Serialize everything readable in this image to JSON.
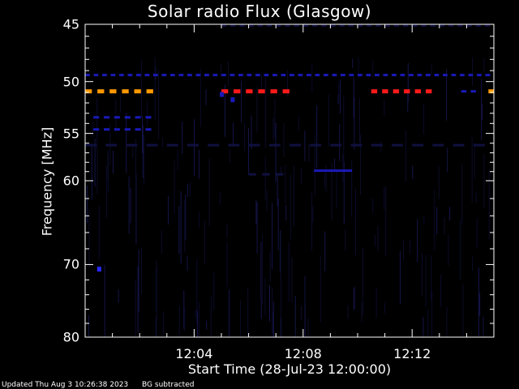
{
  "chart_data": {
    "type": "heatmap",
    "title": "Solar radio Flux (Glasgow)",
    "xlabel": "Start Time (28-Jul-23 12:00:00)",
    "ylabel": "Frequency [MHz]",
    "x_range_minutes": [
      0,
      15
    ],
    "y_range_mhz": [
      45,
      80
    ],
    "x_ticks": [
      {
        "value": 4,
        "label": "12:04"
      },
      {
        "value": 8,
        "label": "12:08"
      },
      {
        "value": 12,
        "label": "12:12"
      }
    ],
    "y_ticks": [
      {
        "value": 45,
        "label": "45"
      },
      {
        "value": 50,
        "label": "50"
      },
      {
        "value": 55,
        "label": "55"
      },
      {
        "value": 60,
        "label": "60"
      },
      {
        "value": 70,
        "label": "70"
      },
      {
        "value": 80,
        "label": "80"
      }
    ],
    "background_color": "#000000",
    "colors": {
      "dim": "#101040",
      "blue": "#1a1ab8",
      "bright_blue": "#2a2aff",
      "orange": "#ff9900",
      "red": "#ff1a1a"
    },
    "bands": [
      {
        "freq": 50.9,
        "x_start": 0.0,
        "x_end": 2.7,
        "color": "orange",
        "dashes": 6
      },
      {
        "freq": 50.9,
        "x_start": 5.0,
        "x_end": 7.7,
        "color": "red",
        "dashes": 6
      },
      {
        "freq": 50.9,
        "x_start": 10.5,
        "x_end": 12.9,
        "color": "red",
        "dashes": 6
      },
      {
        "freq": 50.9,
        "x_start": 13.8,
        "x_end": 14.5,
        "color": "blue",
        "dashes": 2
      },
      {
        "freq": 50.9,
        "x_start": 14.8,
        "x_end": 15.0,
        "color": "orange",
        "dashes": 1
      },
      {
        "freq": 49.4,
        "x_start": 0.0,
        "x_end": 15.0,
        "color": "blue",
        "dashes": 48
      },
      {
        "freq": 45.1,
        "x_start": 5.0,
        "x_end": 15.0,
        "color": "dim",
        "dashes": 30
      },
      {
        "freq": 53.4,
        "x_start": 0.3,
        "x_end": 2.6,
        "color": "blue",
        "dashes": 6
      },
      {
        "freq": 54.6,
        "x_start": 0.3,
        "x_end": 2.6,
        "color": "blue",
        "dashes": 6
      },
      {
        "freq": 58.9,
        "x_start": 8.4,
        "x_end": 9.8,
        "color": "blue",
        "dashes": 1
      },
      {
        "freq": 59.3,
        "x_start": 6.0,
        "x_end": 7.5,
        "color": "dim",
        "dashes": 3
      },
      {
        "freq": 56.2,
        "x_start": 0.0,
        "x_end": 15.0,
        "color": "dim",
        "dashes": 20
      }
    ],
    "spots": [
      {
        "freq": 70.6,
        "x": 0.5,
        "color": "bright_blue"
      },
      {
        "freq": 51.7,
        "x": 5.4,
        "color": "blue"
      },
      {
        "freq": 51.2,
        "x": 5.0,
        "color": "blue"
      }
    ]
  },
  "footer": {
    "updated": "Updated Thu Aug  3 10:26:38 2023",
    "note": "BG subtracted"
  }
}
